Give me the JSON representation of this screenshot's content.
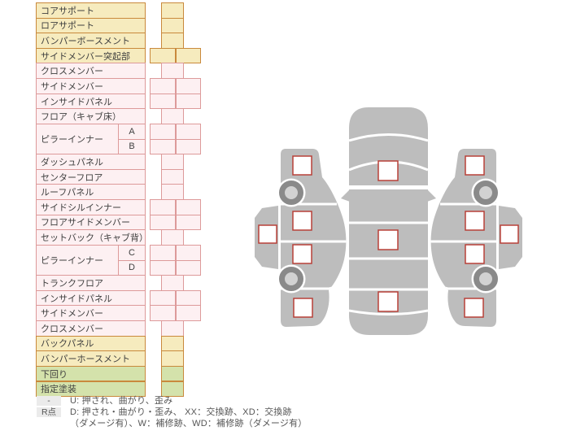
{
  "parts_table": {
    "rows": [
      {
        "label": "コアサポート",
        "color": "yellow",
        "cells": "single"
      },
      {
        "label": "ロアサポート",
        "color": "yellow",
        "cells": "single"
      },
      {
        "label": "バンパーボースメント",
        "color": "yellow",
        "cells": "single"
      },
      {
        "label": "サイドメンバー突起部",
        "color": "yellow",
        "cells": "double"
      },
      {
        "label": "クロスメンバー",
        "color": "pink",
        "cells": "single"
      },
      {
        "label": "サイドメンバー",
        "color": "pink",
        "cells": "double"
      },
      {
        "label": "インサイドパネル",
        "color": "pink",
        "cells": "double"
      },
      {
        "label": "フロア（キャブ床）",
        "color": "pink",
        "cells": "single"
      },
      {
        "label": "ピラーインナー",
        "rowspan": 2,
        "sub": "A",
        "color": "pink",
        "cells": "double"
      },
      {
        "sub": "B",
        "color": "pink",
        "cells": "double"
      },
      {
        "label": "ダッシュパネル",
        "color": "pink",
        "cells": "single"
      },
      {
        "label": "センターフロア",
        "color": "pink",
        "cells": "single"
      },
      {
        "label": "ルーフパネル",
        "color": "pink",
        "cells": "single"
      },
      {
        "label": "サイドシルインナー",
        "color": "pink",
        "cells": "double"
      },
      {
        "label": "フロアサイドメンバー",
        "color": "pink",
        "cells": "double"
      },
      {
        "label": "セットバック（キャブ背）",
        "color": "pink",
        "cells": "single"
      },
      {
        "label": "ピラーインナー",
        "rowspan": 2,
        "sub": "C",
        "color": "pink",
        "cells": "double"
      },
      {
        "sub": "D",
        "color": "pink",
        "cells": "double"
      },
      {
        "label": "トランクフロア",
        "color": "pink",
        "cells": "single"
      },
      {
        "label": "インサイドパネル",
        "color": "pink",
        "cells": "double"
      },
      {
        "label": "サイドメンバー",
        "color": "pink",
        "cells": "double"
      },
      {
        "label": "クロスメンバー",
        "color": "pink",
        "cells": "single"
      },
      {
        "label": "バックパネル",
        "color": "yellow",
        "cells": "single"
      },
      {
        "label": "バンパーホースメント",
        "color": "yellow",
        "cells": "single"
      },
      {
        "label": "下回り",
        "color": "green",
        "cells": "single"
      },
      {
        "label": "指定塗装",
        "color": "green",
        "cells": "single"
      }
    ]
  },
  "legend": {
    "rows": [
      {
        "badge": "-",
        "text": "U: 押され、曲がり、歪み"
      },
      {
        "badge": "R点",
        "text": "D: 押され・曲がり・歪み、 XX：交換跡、XD：交換跡"
      },
      {
        "badge": "",
        "text": "（ダメージ有）、W：補修跡、WD：補修跡（ダメージ有）"
      }
    ]
  },
  "diagram": {
    "top_view_markers": [
      "hood",
      "roof",
      "trunk"
    ],
    "left_view_markers": [
      "front-fender",
      "front-door",
      "rear-door",
      "rear-quarter",
      "rocker"
    ],
    "right_view_markers": [
      "front-fender",
      "front-door",
      "rear-door",
      "rear-quarter",
      "rocker"
    ]
  },
  "colors": {
    "row_yellow_bg": "#f6ebbe",
    "row_pink_bg": "#fdf0f2",
    "row_green_bg": "#d4e2ab",
    "border_orange": "#c9893c",
    "border_pink": "#dd9a9a",
    "car_body_gray": "#bdbdbd",
    "wheel_ring_gray": "#8a8a8a",
    "wheel_hub_gray": "#d2d2d2",
    "marker_border_red": "#b84038",
    "marker_fill": "#ffffff"
  }
}
